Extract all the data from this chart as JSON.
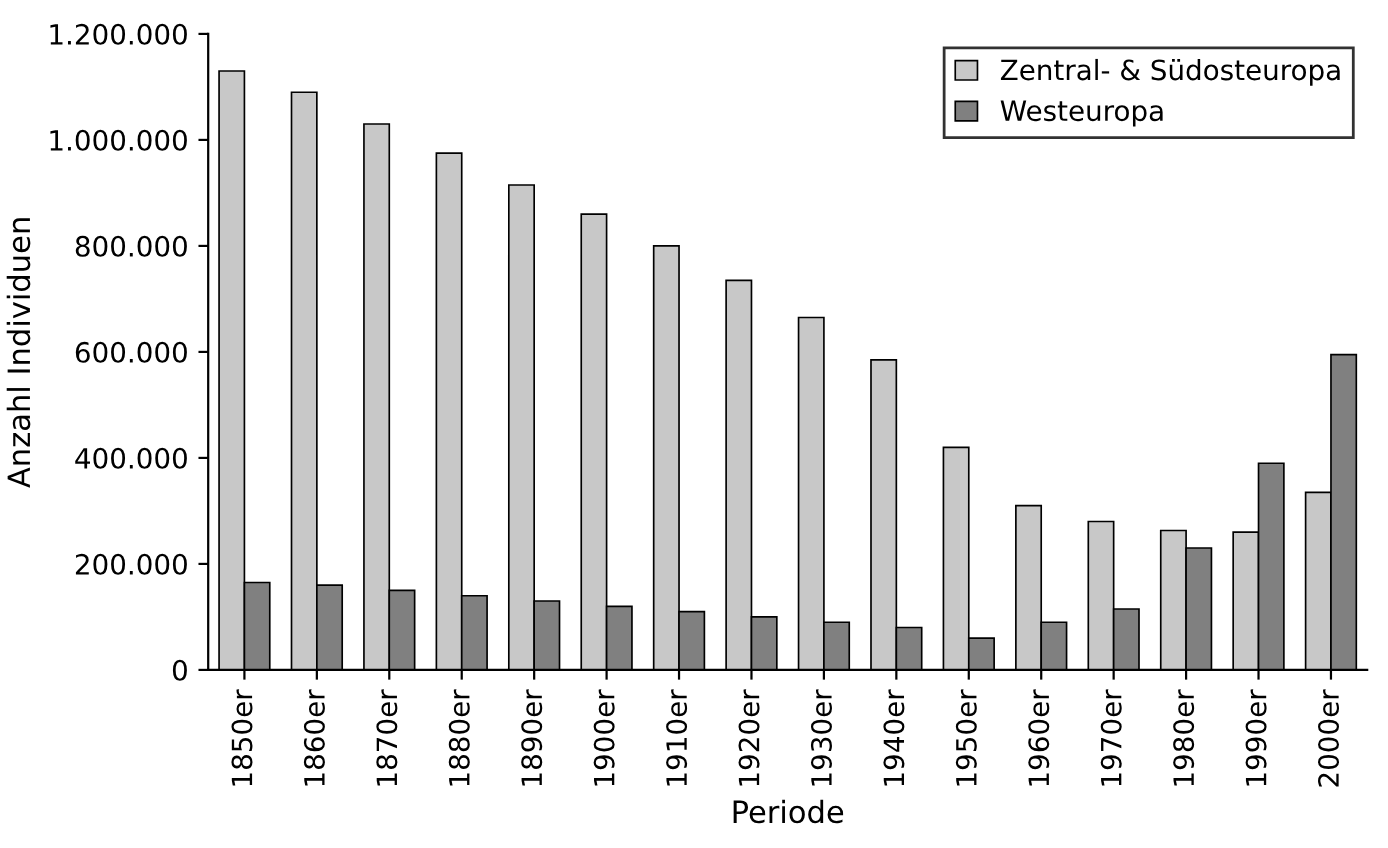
{
  "chart_data": {
    "type": "bar",
    "xlabel": "Periode",
    "ylabel": "Anzahl Individuen",
    "categories": [
      "1850er",
      "1860er",
      "1870er",
      "1880er",
      "1890er",
      "1900er",
      "1910er",
      "1920er",
      "1930er",
      "1940er",
      "1950er",
      "1960er",
      "1970er",
      "1980er",
      "1990er",
      "2000er"
    ],
    "series": [
      {
        "name": "Zentral- & Südosteuropa",
        "color": "#c8c8c8",
        "values": [
          1130000,
          1090000,
          1030000,
          975000,
          915000,
          860000,
          800000,
          735000,
          665000,
          585000,
          420000,
          310000,
          280000,
          263000,
          260000,
          335000
        ]
      },
      {
        "name": "Westeuropa",
        "color": "#808080",
        "values": [
          165000,
          160000,
          150000,
          140000,
          130000,
          120000,
          110000,
          100000,
          90000,
          80000,
          60000,
          90000,
          115000,
          230000,
          390000,
          595000
        ]
      }
    ],
    "ylim": [
      0,
      1200000
    ],
    "yticks": [
      0,
      {
        "value": 200000,
        "label": "200.000"
      },
      {
        "value": 400000,
        "label": "400.000"
      },
      {
        "value": 600000,
        "label": "600.000"
      },
      {
        "value": 800000,
        "label": "800.000"
      },
      {
        "value": 1000000,
        "label": "1.000.000"
      },
      {
        "value": 1200000,
        "label": "1.200.000"
      }
    ],
    "legend": "top right",
    "grid": false
  }
}
